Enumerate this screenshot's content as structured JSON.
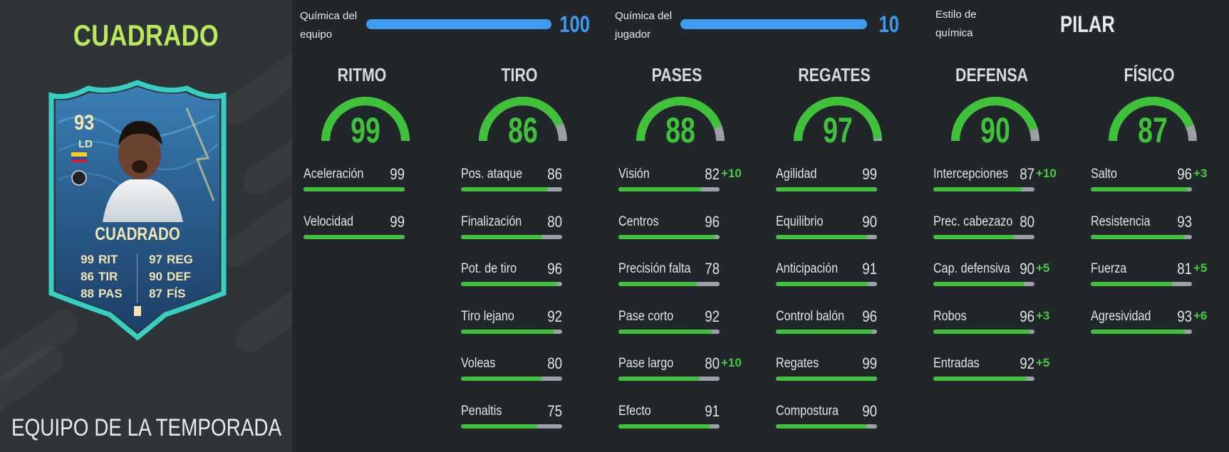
{
  "player": {
    "name": "CUADRADO",
    "edition": "EQUIPO DE LA TEMPORADA"
  },
  "card": {
    "rating": "93",
    "position": "LD",
    "name": "CUADRADO",
    "stats_left": [
      {
        "value": "99",
        "label": "RIT"
      },
      {
        "value": "86",
        "label": "TIR"
      },
      {
        "value": "88",
        "label": "PAS"
      }
    ],
    "stats_right": [
      {
        "value": "97",
        "label": "REG"
      },
      {
        "value": "90",
        "label": "DEF"
      },
      {
        "value": "87",
        "label": "FÍS"
      }
    ]
  },
  "chemistry": {
    "team_label_1": "Química del",
    "team_label_2": "equipo",
    "team_value": "100",
    "team_fraction": 1.0,
    "player_label_1": "Química del",
    "player_label_2": "jugador",
    "player_value": "10",
    "player_fraction": 1.0,
    "style_label_1": "Estilo de",
    "style_label_2": "química",
    "style_value": "PILAR"
  },
  "colors": {
    "accent_green": "#3fc23a",
    "accent_blue": "#3d9cf0",
    "title_lime": "#b9e85b",
    "card_teal": "#38e0d2"
  },
  "columns": [
    {
      "title": "RITMO",
      "value": "99",
      "stats": [
        {
          "name": "Aceleración",
          "value": "99",
          "bonus": ""
        },
        {
          "name": "Velocidad",
          "value": "99",
          "bonus": ""
        }
      ]
    },
    {
      "title": "TIRO",
      "value": "86",
      "stats": [
        {
          "name": "Pos. ataque",
          "value": "86",
          "bonus": ""
        },
        {
          "name": "Finalización",
          "value": "80",
          "bonus": ""
        },
        {
          "name": "Pot. de tiro",
          "value": "96",
          "bonus": ""
        },
        {
          "name": "Tiro lejano",
          "value": "92",
          "bonus": ""
        },
        {
          "name": "Voleas",
          "value": "80",
          "bonus": ""
        },
        {
          "name": "Penaltis",
          "value": "75",
          "bonus": ""
        }
      ]
    },
    {
      "title": "PASES",
      "value": "88",
      "stats": [
        {
          "name": "Visión",
          "value": "82",
          "bonus": "+10"
        },
        {
          "name": "Centros",
          "value": "96",
          "bonus": ""
        },
        {
          "name": "Precisión falta",
          "value": "78",
          "bonus": ""
        },
        {
          "name": "Pase corto",
          "value": "92",
          "bonus": ""
        },
        {
          "name": "Pase largo",
          "value": "80",
          "bonus": "+10"
        },
        {
          "name": "Efecto",
          "value": "91",
          "bonus": ""
        }
      ]
    },
    {
      "title": "REGATES",
      "value": "97",
      "stats": [
        {
          "name": "Agilidad",
          "value": "99",
          "bonus": ""
        },
        {
          "name": "Equilibrio",
          "value": "90",
          "bonus": ""
        },
        {
          "name": "Anticipación",
          "value": "91",
          "bonus": ""
        },
        {
          "name": "Control balón",
          "value": "96",
          "bonus": ""
        },
        {
          "name": "Regates",
          "value": "99",
          "bonus": ""
        },
        {
          "name": "Compostura",
          "value": "90",
          "bonus": ""
        }
      ]
    },
    {
      "title": "DEFENSA",
      "value": "90",
      "stats": [
        {
          "name": "Intercepciones",
          "value": "87",
          "bonus": "+10"
        },
        {
          "name": "Prec. cabezazo",
          "value": "80",
          "bonus": ""
        },
        {
          "name": "Cap. defensiva",
          "value": "90",
          "bonus": "+5"
        },
        {
          "name": "Robos",
          "value": "96",
          "bonus": "+3"
        },
        {
          "name": "Entradas",
          "value": "92",
          "bonus": "+5"
        }
      ]
    },
    {
      "title": "FÍSICO",
      "value": "87",
      "stats": [
        {
          "name": "Salto",
          "value": "96",
          "bonus": "+3"
        },
        {
          "name": "Resistencia",
          "value": "93",
          "bonus": ""
        },
        {
          "name": "Fuerza",
          "value": "81",
          "bonus": "+5"
        },
        {
          "name": "Agresividad",
          "value": "93",
          "bonus": "+6"
        }
      ]
    }
  ]
}
